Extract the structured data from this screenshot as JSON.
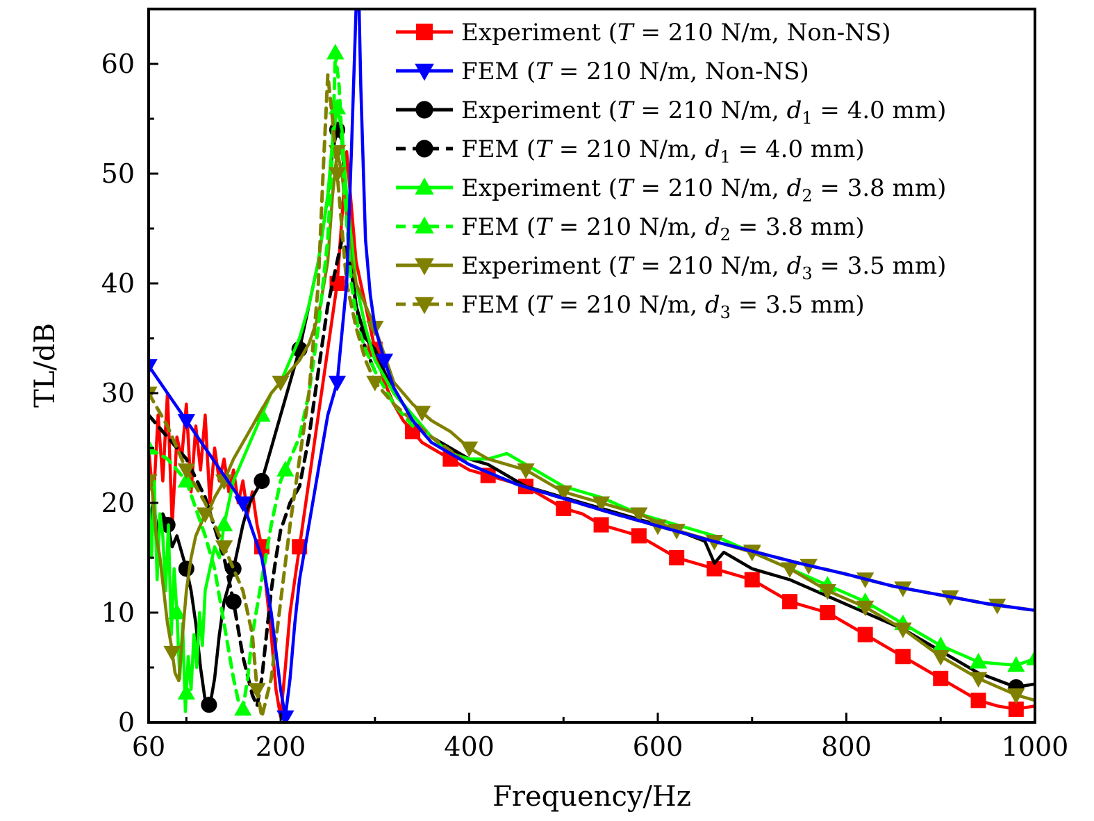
{
  "chart_data": {
    "type": "line",
    "xlabel": "Frequency/Hz",
    "ylabel": "TL/dB",
    "xlim": [
      60,
      1000
    ],
    "ylim": [
      0,
      65
    ],
    "x_tick_labels": [
      "60",
      "200",
      "400",
      "600",
      "800",
      "1000"
    ],
    "x_tick_values": [
      60,
      200,
      400,
      600,
      800,
      1000
    ],
    "y_tick_labels": [
      "0",
      "10",
      "20",
      "30",
      "40",
      "50",
      "60"
    ],
    "y_tick_values": [
      0,
      10,
      20,
      30,
      40,
      50,
      60
    ],
    "legend_position": "top-right",
    "series": [
      {
        "name": "Experiment (T = 210 N/m, Non-NS)",
        "legend_prefix": "Experiment (",
        "legend_var": "T",
        "legend_rest": " = 210 N/m, Non-NS)",
        "legend_sub": "",
        "legend_rest2": "",
        "color": "#ff0000",
        "dash": "solid",
        "marker": "square",
        "x": [
          60,
          65,
          70,
          75,
          80,
          85,
          90,
          95,
          100,
          105,
          110,
          115,
          120,
          125,
          130,
          135,
          140,
          145,
          150,
          155,
          160,
          165,
          170,
          175,
          180,
          185,
          190,
          195,
          200,
          205,
          210,
          215,
          220,
          230,
          240,
          250,
          260,
          265,
          270,
          275,
          280,
          285,
          290,
          295,
          300,
          310,
          320,
          330,
          340,
          350,
          360,
          380,
          400,
          420,
          440,
          460,
          480,
          500,
          520,
          540,
          560,
          580,
          600,
          620,
          640,
          660,
          680,
          700,
          720,
          740,
          760,
          780,
          800,
          820,
          840,
          860,
          880,
          900,
          920,
          940,
          960,
          980,
          1000
        ],
        "y": [
          25,
          20,
          28,
          22,
          30,
          18,
          26,
          24,
          29,
          21,
          27,
          23,
          28,
          20,
          25,
          22,
          24,
          21,
          23,
          20,
          22,
          19,
          21,
          18,
          16,
          12,
          8,
          3,
          0.5,
          5,
          10,
          13,
          16,
          22,
          28,
          34,
          40,
          46,
          52,
          47,
          42,
          40,
          38,
          36,
          34,
          31,
          29,
          27.5,
          26.5,
          25.5,
          25,
          24,
          23,
          22.5,
          22,
          21.5,
          20.5,
          19.5,
          19,
          18,
          17.5,
          17,
          16,
          15,
          14.5,
          14,
          13.5,
          13,
          12,
          11,
          10.5,
          10,
          9,
          8,
          7,
          6,
          5,
          4,
          3,
          2,
          1.5,
          1.2,
          1.5
        ],
        "marker_x": [
          180,
          220,
          260,
          300,
          340,
          380,
          420,
          460,
          500,
          540,
          580,
          620,
          660,
          700,
          740,
          780,
          820,
          860,
          900,
          940,
          980
        ]
      },
      {
        "name": "FEM (T = 210 N/m, Non-NS)",
        "legend_prefix": "FEM (",
        "legend_var": "T",
        "legend_rest": " = 210 N/m, Non-NS)",
        "legend_sub": "",
        "legend_rest2": "",
        "color": "#0000ff",
        "dash": "solid",
        "marker": "triangle-down",
        "x": [
          60,
          80,
          100,
          120,
          140,
          160,
          180,
          190,
          200,
          205,
          210,
          215,
          220,
          230,
          240,
          250,
          260,
          270,
          275,
          280,
          283,
          285,
          290,
          295,
          300,
          310,
          320,
          340,
          360,
          380,
          400,
          450,
          500,
          550,
          600,
          650,
          700,
          750,
          800,
          850,
          900,
          950,
          1000
        ],
        "y": [
          32.5,
          30,
          27.5,
          25,
          22.5,
          20,
          15,
          10,
          3,
          0.5,
          4,
          9,
          13,
          18,
          23,
          28,
          31,
          40,
          52,
          65,
          66,
          58,
          44,
          39,
          36,
          33,
          30.5,
          27.5,
          25.5,
          24.5,
          23.5,
          21.7,
          20.4,
          19.1,
          17.9,
          16.7,
          15.6,
          14.5,
          13.5,
          12.4,
          11.6,
          10.8,
          10.2
        ],
        "marker_x": [
          60,
          100,
          160,
          205,
          260,
          310
        ]
      },
      {
        "name": "Experiment (T = 210 N/m, d1 = 4.0 mm)",
        "legend_prefix": "Experiment (",
        "legend_var": "T",
        "legend_rest": " = 210 N/m, ",
        "legend_sub": "1",
        "legend_rest2": " = 4.0 mm)",
        "color": "#000000",
        "dash": "solid",
        "marker": "circle",
        "x": [
          60,
          65,
          70,
          75,
          80,
          85,
          90,
          95,
          100,
          105,
          110,
          115,
          120,
          125,
          130,
          135,
          140,
          145,
          150,
          155,
          160,
          165,
          170,
          180,
          190,
          200,
          210,
          220,
          230,
          240,
          250,
          255,
          260,
          265,
          270,
          275,
          280,
          290,
          300,
          320,
          340,
          360,
          380,
          400,
          420,
          440,
          460,
          480,
          500,
          540,
          580,
          620,
          650,
          660,
          670,
          700,
          740,
          780,
          820,
          860,
          900,
          940,
          980,
          1000
        ],
        "y": [
          18,
          20,
          17,
          19,
          18,
          16,
          17,
          15.5,
          14,
          12,
          9,
          5,
          2,
          1.5,
          4,
          8,
          11,
          12.5,
          14,
          16,
          18,
          19.5,
          20.5,
          22,
          25,
          28,
          31,
          34,
          38,
          42,
          48,
          52,
          54,
          53,
          47,
          42,
          38,
          35,
          34,
          30,
          28,
          26,
          25,
          24,
          23.5,
          22.5,
          21.5,
          21,
          20.5,
          19.5,
          18.5,
          17.5,
          16.5,
          14.5,
          15.5,
          14,
          13,
          11.5,
          10,
          8.5,
          6.5,
          4.5,
          3.2,
          3.5
        ],
        "marker_x": [
          80,
          100,
          124,
          150,
          180,
          220,
          260,
          980
        ]
      },
      {
        "name": "FEM (T = 210 N/m, d1 = 4.0 mm)",
        "legend_prefix": "FEM (",
        "legend_var": "T",
        "legend_rest": " = 210 N/m, ",
        "legend_sub": "1",
        "legend_rest2": " = 4.0 mm)",
        "color": "#000000",
        "dash": "dashed",
        "marker": "circle",
        "x": [
          60,
          80,
          100,
          120,
          140,
          150,
          160,
          170,
          175,
          180,
          185,
          190,
          195,
          200,
          210,
          220,
          230,
          240,
          250,
          260,
          265,
          270,
          275,
          280,
          290,
          300
        ],
        "y": [
          28,
          26,
          24,
          20.5,
          15,
          11,
          6,
          2.5,
          1.5,
          4,
          8,
          12,
          15,
          17.5,
          20,
          21.5,
          26,
          32,
          38,
          42,
          44,
          43,
          41,
          38,
          34,
          32
        ],
        "marker_x": [
          150
        ]
      },
      {
        "name": "Experiment (T = 210 N/m, d2 = 3.8 mm)",
        "legend_prefix": "Experiment (",
        "legend_var": "T",
        "legend_rest": " = 210 N/m, ",
        "legend_sub": "2",
        "legend_rest2": " = 3.8 mm)",
        "color": "#00ff00",
        "dash": "solid",
        "marker": "triangle-up",
        "x": [
          60,
          63,
          66,
          69,
          72,
          75,
          78,
          81,
          84,
          87,
          90,
          93,
          96,
          99,
          102,
          105,
          108,
          111,
          114,
          117,
          120,
          125,
          130,
          135,
          140,
          145,
          150,
          160,
          170,
          180,
          190,
          200,
          210,
          220,
          230,
          240,
          250,
          255,
          260,
          265,
          270,
          275,
          280,
          290,
          300,
          320,
          340,
          360,
          380,
          400,
          420,
          440,
          460,
          480,
          500,
          540,
          580,
          620,
          660,
          700,
          740,
          780,
          820,
          860,
          900,
          940,
          980,
          1000
        ],
        "y": [
          20,
          15,
          22,
          13,
          19,
          17,
          12,
          18,
          8,
          14,
          10,
          4,
          9,
          1,
          6,
          3,
          8,
          5,
          10,
          7,
          12,
          14,
          16,
          15,
          18,
          20,
          22,
          24,
          26,
          28,
          30,
          31,
          33,
          35,
          38,
          42,
          48,
          53,
          56,
          54,
          48,
          44,
          40,
          36,
          33,
          30,
          28,
          26,
          24.5,
          24,
          24,
          24.5,
          23.5,
          22.5,
          21.5,
          20.5,
          19,
          18,
          17,
          15.5,
          14,
          12.5,
          11,
          9,
          7,
          5.5,
          5.2,
          5.8
        ],
        "marker_x": [
          90,
          100,
          140,
          180,
          260,
          780,
          820,
          860,
          900,
          940,
          980,
          1000
        ]
      },
      {
        "name": "FEM (T = 210 N/m, d2 = 3.8 mm)",
        "legend_prefix": "FEM (",
        "legend_var": "T",
        "legend_rest": " = 210 N/m, ",
        "legend_sub": "2",
        "legend_rest2": " = 3.8 mm)",
        "color": "#00ff00",
        "dash": "dashed",
        "marker": "triangle-up",
        "x": [
          60,
          80,
          100,
          120,
          130,
          140,
          150,
          155,
          160,
          165,
          170,
          180,
          190,
          200,
          210,
          220,
          230,
          240,
          250,
          255,
          258,
          262,
          268,
          275,
          282,
          290,
          300,
          320,
          340
        ],
        "y": [
          25,
          24,
          22,
          17,
          14,
          9,
          4,
          2,
          1.2,
          4,
          8,
          13,
          18,
          22,
          24,
          26,
          30,
          36,
          44,
          52,
          61,
          58,
          48,
          40,
          36,
          34,
          32,
          29,
          27
        ],
        "marker_x": [
          60,
          100,
          160,
          205,
          258
        ]
      },
      {
        "name": "Experiment (T = 210 N/m, d3 = 3.5 mm)",
        "legend_prefix": "Experiment (",
        "legend_var": "T",
        "legend_rest": " = 210 N/m, ",
        "legend_sub": "3",
        "legend_rest2": " = 3.5 mm)",
        "color": "#808000",
        "dash": "solid",
        "marker": "triangle-down",
        "x": [
          60,
          64,
          68,
          72,
          76,
          80,
          84,
          88,
          92,
          96,
          100,
          105,
          110,
          115,
          120,
          125,
          130,
          140,
          150,
          160,
          170,
          180,
          190,
          200,
          210,
          220,
          230,
          240,
          250,
          255,
          260,
          265,
          270,
          275,
          280,
          290,
          300,
          320,
          340,
          360,
          380,
          400,
          420,
          440,
          460,
          480,
          500,
          540,
          580,
          620,
          660,
          700,
          740,
          780,
          820,
          860,
          900,
          940,
          980,
          1000
        ],
        "y": [
          22,
          21,
          17,
          15,
          12,
          9,
          7,
          4.5,
          3.8,
          8,
          12,
          15,
          17,
          18,
          19,
          19.5,
          20.5,
          22,
          24,
          25.5,
          27,
          28.5,
          30,
          31,
          32,
          33,
          34.5,
          37,
          42,
          48,
          52,
          50,
          46,
          42,
          40,
          38,
          36,
          31,
          29,
          27.5,
          26.5,
          25,
          24,
          23.5,
          23,
          22,
          21,
          20,
          19,
          17.5,
          16.5,
          15.5,
          14,
          12,
          10.5,
          8.5,
          6,
          4,
          2.5,
          2
        ],
        "marker_x": [
          60,
          85,
          120,
          140,
          200,
          260,
          300,
          350,
          400,
          460,
          500,
          540,
          580,
          620,
          660,
          700,
          740,
          780,
          820,
          860,
          900,
          940,
          980
        ]
      },
      {
        "name": "FEM (T = 210 N/m, d3 = 3.5 mm)",
        "legend_prefix": "FEM (",
        "legend_var": "T",
        "legend_rest": " = 210 N/m, ",
        "legend_sub": "3",
        "legend_rest2": " = 3.5 mm)",
        "color": "#808000",
        "dash": "dashed",
        "marker": "triangle-down",
        "x": [
          60,
          80,
          100,
          120,
          140,
          160,
          170,
          175,
          180,
          190,
          200,
          210,
          220,
          230,
          240,
          245,
          250,
          255,
          260,
          265,
          270,
          280,
          290,
          300,
          320,
          340,
          360,
          400,
          450,
          500,
          550,
          600,
          650,
          700,
          750,
          800,
          850,
          900,
          950,
          1000
        ],
        "y": [
          30,
          27,
          23,
          20,
          16,
          12,
          8,
          3,
          0.5,
          4,
          11,
          18,
          24,
          30,
          40,
          50,
          59,
          55,
          50,
          45,
          40,
          36,
          33,
          31,
          29,
          27.5,
          26,
          23.5,
          21.7,
          20.4,
          19.1,
          17.9,
          16.7,
          15.6,
          14.5,
          13.5,
          12.4,
          11.6,
          10.8,
          10.2
        ],
        "marker_x": [
          60,
          100,
          140,
          175,
          260,
          300,
          600,
          700,
          760,
          820,
          860,
          910,
          960
        ]
      }
    ]
  }
}
